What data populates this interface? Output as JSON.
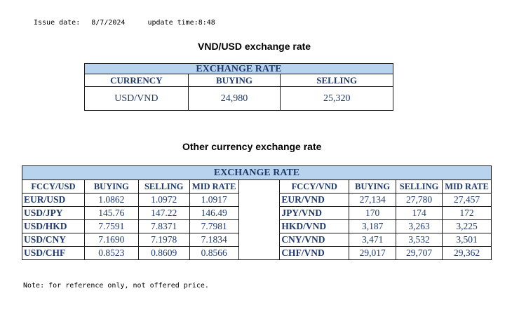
{
  "issue": {
    "date_label": "Issue date:",
    "date_value": "8/7/2024",
    "update_label": "update time:8:48"
  },
  "vnd_usd": {
    "heading": "VND/USD exchange rate",
    "band": "EXCHANGE RATE",
    "headers": [
      "CURRENCY",
      "BUYING",
      "SELLING"
    ],
    "row": [
      "USD/VND",
      "24,980",
      "25,320"
    ]
  },
  "other": {
    "heading": "Other currency exchange rate",
    "band": "EXCHANGE  RATE",
    "left_headers": [
      "FCCY/USD",
      "BUYING",
      "SELLING",
      "MID RATE"
    ],
    "right_headers": [
      "FCCY/VND",
      "BUYING",
      "SELLING",
      "MID RATE"
    ],
    "left_rows": [
      [
        "EUR/USD",
        "1.0862",
        "1.0972",
        "1.0917"
      ],
      [
        "USD/JPY",
        "145.76",
        "147.22",
        "146.49"
      ],
      [
        "USD/HKD",
        "7.7591",
        "7.8371",
        "7.7981"
      ],
      [
        "USD/CNY",
        "7.1690",
        "7.1978",
        "7.1834"
      ],
      [
        "USD/CHF",
        "0.8523",
        "0.8609",
        "0.8566"
      ]
    ],
    "right_rows": [
      [
        "EUR/VND",
        "27,134",
        "27,780",
        "27,457"
      ],
      [
        "JPY/VND",
        "170",
        "174",
        "172"
      ],
      [
        "HKD/VND",
        "3,187",
        "3,263",
        "3,225"
      ],
      [
        "CNY/VND",
        "3,471",
        "3,532",
        "3,501"
      ],
      [
        "CHF/VND",
        "29,017",
        "29,707",
        "29,362"
      ]
    ]
  },
  "note": "Note: for reference only, not offered price."
}
